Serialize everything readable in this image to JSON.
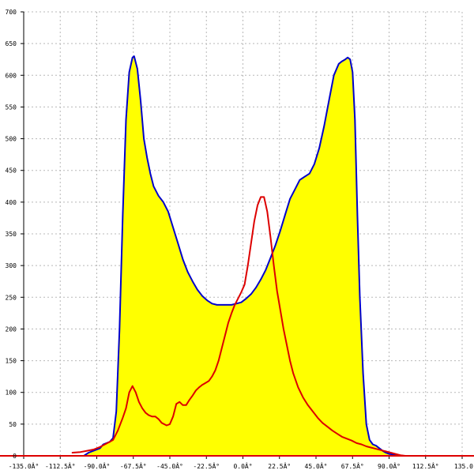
{
  "chart_data": {
    "type": "area",
    "grid": true,
    "xlim": [
      -135,
      135
    ],
    "ylim": [
      0,
      700
    ],
    "xticks": [
      -135,
      -112.5,
      -90,
      -67.5,
      -45,
      -22.5,
      0,
      22.5,
      45,
      67.5,
      90,
      112.5,
      135
    ],
    "xtick_labels": [
      "-135.0Â°",
      "-112.5Â°",
      "-90.0Â°",
      "-67.5Â°",
      "-45.0Â°",
      "-22.5Â°",
      "0.0Â°",
      "22.5Â°",
      "45.0Â°",
      "67.5Â°",
      "90.0Â°",
      "112.5Â°",
      "135.0"
    ],
    "yticks": [
      0,
      50,
      100,
      150,
      200,
      250,
      300,
      350,
      400,
      450,
      500,
      550,
      600,
      650,
      700
    ],
    "ytick_labels": [
      "0",
      "50",
      "100",
      "150",
      "200",
      "250",
      "300",
      "350",
      "400",
      "450",
      "500",
      "550",
      "600",
      "650",
      "700"
    ],
    "series": [
      {
        "color": "#0000cc",
        "fill": "#ffff00",
        "x": [
          -98,
          -95,
          -92,
          -88,
          -86,
          -84,
          -82,
          -80,
          -78,
          -76,
          -74,
          -72,
          -70,
          -68,
          -67,
          -65,
          -63,
          -61,
          -59,
          -57,
          -55,
          -52,
          -49,
          -46,
          -43,
          -40,
          -37,
          -34,
          -31,
          -28,
          -25,
          -22,
          -19,
          -16,
          -13,
          -10,
          -7,
          -4,
          -1,
          2,
          5,
          8,
          11,
          14,
          17,
          20,
          23,
          26,
          29,
          32,
          35,
          38,
          41,
          44,
          47,
          50,
          53,
          56,
          59,
          61,
          63,
          64.5,
          66,
          67.5,
          69,
          70.5,
          72,
          74,
          76,
          78,
          80,
          82,
          84,
          86,
          88,
          90,
          93,
          96,
          99,
          102
        ],
        "y": [
          0,
          5,
          8,
          12,
          18,
          20,
          22,
          28,
          70,
          200,
          380,
          530,
          605,
          628,
          630,
          610,
          560,
          500,
          470,
          445,
          425,
          410,
          400,
          385,
          360,
          335,
          310,
          290,
          275,
          262,
          252,
          245,
          240,
          238,
          238,
          238,
          238,
          240,
          242,
          248,
          255,
          265,
          278,
          293,
          312,
          332,
          355,
          380,
          405,
          420,
          435,
          440,
          445,
          460,
          485,
          520,
          560,
          600,
          618,
          622,
          625,
          628,
          625,
          605,
          530,
          380,
          250,
          130,
          50,
          25,
          18,
          16,
          12,
          8,
          5,
          3,
          2,
          1,
          0,
          0
        ]
      },
      {
        "color": "#dd0000",
        "fill": null,
        "x": [
          -105,
          -100,
          -96,
          -92,
          -88,
          -85,
          -82,
          -80,
          -77,
          -74,
          -72,
          -70,
          -68,
          -66,
          -64,
          -62,
          -60,
          -58,
          -56,
          -54,
          -52,
          -50,
          -47,
          -45,
          -43,
          -41,
          -39,
          -37,
          -35,
          -33,
          -31,
          -29,
          -27,
          -25,
          -23,
          -21,
          -19,
          -17,
          -15,
          -13,
          -11,
          -9,
          -7,
          -5,
          -3,
          -1,
          1,
          3,
          5,
          7,
          9,
          11,
          13,
          15,
          17,
          19,
          21,
          23,
          25,
          27,
          29,
          31,
          34,
          37,
          40,
          43,
          46,
          49,
          52,
          55,
          58,
          61,
          64,
          67,
          70,
          73,
          76,
          79,
          82,
          85,
          88,
          91,
          94,
          97,
          100,
          103,
          106,
          110,
          115,
          120,
          125,
          130,
          135
        ],
        "y": [
          5,
          6,
          8,
          10,
          14,
          18,
          22,
          25,
          40,
          60,
          75,
          100,
          110,
          100,
          85,
          75,
          68,
          64,
          62,
          62,
          58,
          52,
          48,
          50,
          62,
          82,
          85,
          80,
          80,
          88,
          95,
          103,
          108,
          112,
          115,
          118,
          125,
          135,
          150,
          170,
          190,
          210,
          225,
          238,
          248,
          258,
          270,
          300,
          335,
          370,
          395,
          408,
          408,
          385,
          345,
          300,
          260,
          230,
          200,
          175,
          150,
          130,
          108,
          92,
          80,
          70,
          60,
          52,
          46,
          40,
          35,
          30,
          27,
          24,
          20,
          18,
          15,
          13,
          11,
          9,
          7,
          5,
          3,
          1,
          0,
          0,
          0,
          0,
          0,
          0,
          0,
          0,
          0
        ]
      }
    ]
  }
}
